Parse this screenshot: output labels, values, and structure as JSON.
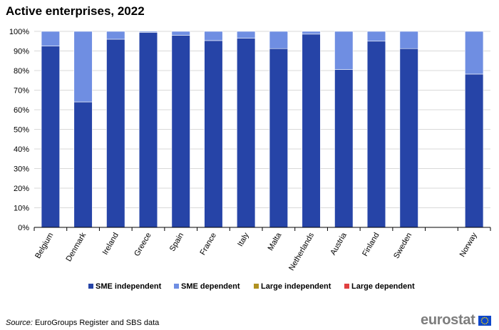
{
  "title": "Active enterprises, 2022",
  "source": {
    "label": "Source:",
    "text": " EuroGroups Register and SBS data"
  },
  "logo": {
    "text": "eurostat"
  },
  "colors": {
    "sme_independent": "#2644a7",
    "sme_dependent": "#6f8ee2",
    "large_independent": "#b09120",
    "large_dependent": "#e04040",
    "grid": "#d9d9d9",
    "axis": "#000000"
  },
  "chart_data": {
    "type": "bar",
    "stacked": true,
    "title": "Active enterprises, 2022",
    "xlabel": "",
    "ylabel": "",
    "ylim": [
      0,
      100
    ],
    "yticks": [
      "0%",
      "10%",
      "20%",
      "30%",
      "40%",
      "50%",
      "60%",
      "70%",
      "80%",
      "90%",
      "100%"
    ],
    "grid": true,
    "legend_position": "bottom",
    "categories": [
      "Belgium",
      "Denmark",
      "Ireland",
      "Greece",
      "Spain",
      "France",
      "Italy",
      "Malta",
      "Netherlands",
      "Austria",
      "Finland",
      "Sweden",
      "",
      "Norway"
    ],
    "series": [
      {
        "name": "SME independent",
        "color": "#2644a7",
        "values": [
          92.5,
          64,
          96,
          99.5,
          98,
          95.3,
          96.5,
          91.2,
          98.6,
          80.5,
          95,
          91.2,
          null,
          78.2
        ]
      },
      {
        "name": "SME dependent",
        "color": "#6f8ee2",
        "values": [
          7.5,
          36,
          4,
          0.5,
          2,
          4.7,
          3.5,
          8.8,
          1.4,
          19.5,
          5,
          8.8,
          null,
          21.8
        ]
      },
      {
        "name": "Large independent",
        "color": "#b09120",
        "values": [
          0,
          0,
          0,
          0,
          0,
          0,
          0,
          0,
          0,
          0,
          0,
          0,
          null,
          0
        ]
      },
      {
        "name": "Large dependent",
        "color": "#e04040",
        "values": [
          0,
          0,
          0,
          0,
          0,
          0,
          0,
          0,
          0,
          0,
          0,
          0,
          null,
          0
        ]
      }
    ]
  }
}
